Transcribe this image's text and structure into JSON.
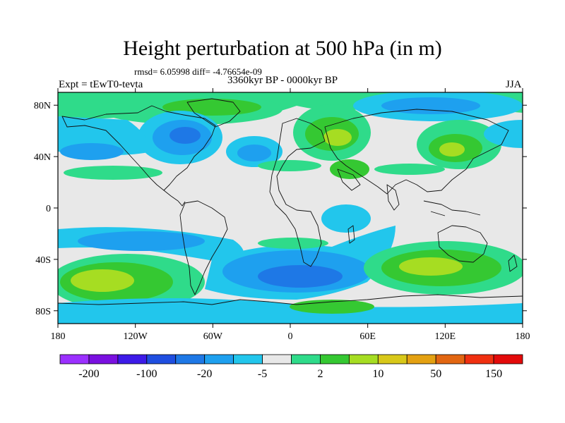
{
  "title": "Height perturbation at 500 hPa (in m)",
  "stats_line": "rmsd= 6.05998 diff= -4.76654e-09",
  "period": "3360kyr BP - 0000kyr BP",
  "experiment": "Expt = tEwT0-tevta",
  "season": "JJA",
  "axes": {
    "x_ticks": [
      "180",
      "120W",
      "60W",
      "0",
      "60E",
      "120E",
      "180"
    ],
    "y_ticks": [
      "80N",
      "40N",
      "0",
      "40S",
      "80S"
    ]
  },
  "colorbar": {
    "colors": [
      "#9b30ff",
      "#7a10e0",
      "#3d1ae8",
      "#1f4ee0",
      "#1e78e6",
      "#1ea0ef",
      "#22c6ec",
      "#e8e8e8",
      "#2fdb8a",
      "#35c832",
      "#a6dd22",
      "#d8c819",
      "#e4a112",
      "#e26612",
      "#f03010",
      "#e30a0a"
    ],
    "labels": [
      "-200",
      "-100",
      "-20",
      "-5",
      "2",
      "10",
      "50",
      "150"
    ]
  },
  "map_colors": {
    "neutral": "#e8e8e8",
    "blue_light": "#22c6ec",
    "blue_mid": "#1ea0ef",
    "blue_dark": "#1e78e6",
    "green_light": "#2fdb8a",
    "green": "#35c832",
    "yellow_green": "#a6dd22",
    "orange_yellow": "#d8c819"
  }
}
